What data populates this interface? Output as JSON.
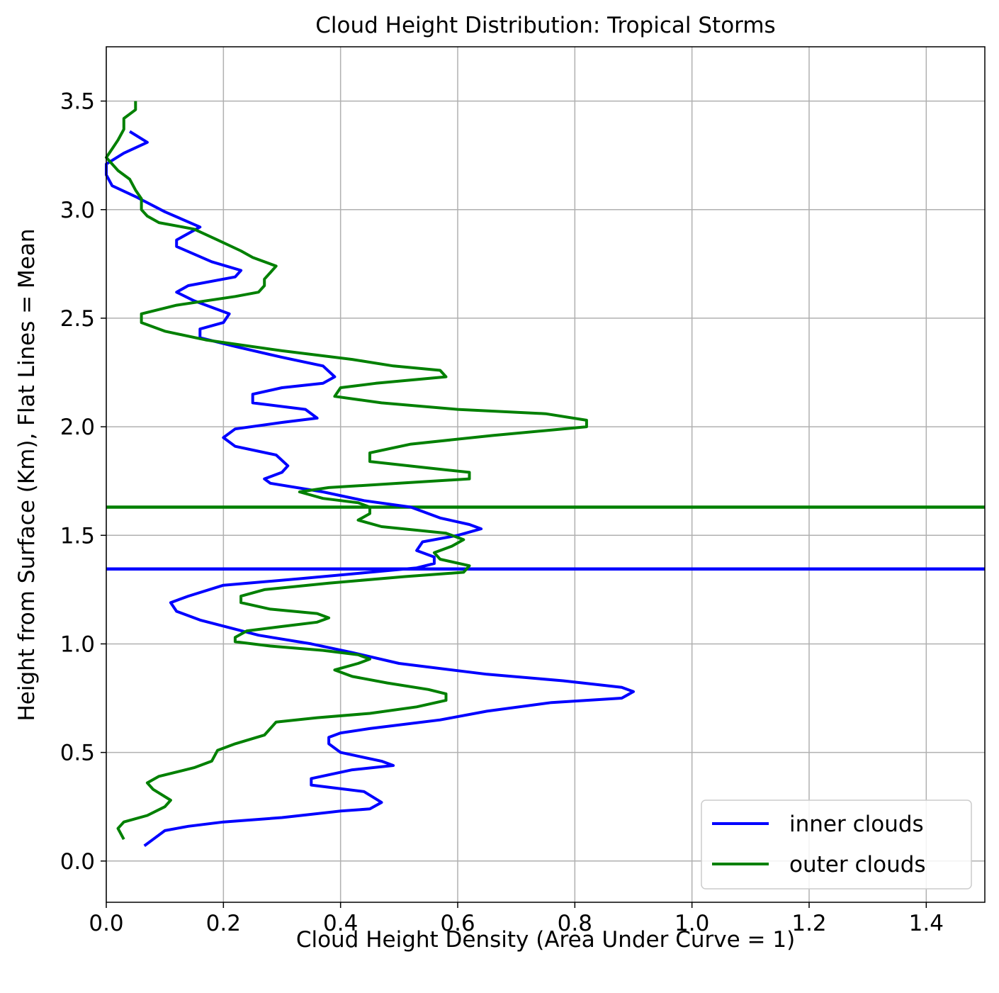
{
  "chart_data": {
    "type": "line",
    "title": "Cloud Height Distribution: Tropical Storms",
    "xlabel": "Cloud Height Density (Area Under Curve = 1)",
    "ylabel": "Height from Surface (Km), Flat Lines = Mean",
    "xlim": [
      0.0,
      1.5
    ],
    "ylim": [
      -0.19,
      3.75
    ],
    "xticks": [
      "0.0",
      "0.2",
      "0.4",
      "0.6",
      "0.8",
      "1.0",
      "1.2",
      "1.4"
    ],
    "yticks": [
      "0.0",
      "0.5",
      "1.0",
      "1.5",
      "2.0",
      "2.5",
      "3.0",
      "3.5"
    ],
    "grid": true,
    "legend": "lower-right",
    "series": [
      {
        "name": "inner clouds",
        "color": "#0000ff",
        "mean": 1.345,
        "points": [
          [
            0.065,
            0.07
          ],
          [
            0.08,
            0.1
          ],
          [
            0.1,
            0.14
          ],
          [
            0.14,
            0.16
          ],
          [
            0.2,
            0.18
          ],
          [
            0.3,
            0.2
          ],
          [
            0.4,
            0.23
          ],
          [
            0.45,
            0.24
          ],
          [
            0.47,
            0.27
          ],
          [
            0.44,
            0.32
          ],
          [
            0.35,
            0.35
          ],
          [
            0.35,
            0.38
          ],
          [
            0.42,
            0.42
          ],
          [
            0.49,
            0.44
          ],
          [
            0.47,
            0.46
          ],
          [
            0.4,
            0.5
          ],
          [
            0.38,
            0.54
          ],
          [
            0.38,
            0.57
          ],
          [
            0.4,
            0.59
          ],
          [
            0.45,
            0.61
          ],
          [
            0.57,
            0.65
          ],
          [
            0.65,
            0.69
          ],
          [
            0.76,
            0.73
          ],
          [
            0.88,
            0.75
          ],
          [
            0.9,
            0.78
          ],
          [
            0.88,
            0.8
          ],
          [
            0.78,
            0.83
          ],
          [
            0.65,
            0.86
          ],
          [
            0.5,
            0.91
          ],
          [
            0.42,
            0.96
          ],
          [
            0.35,
            1.0
          ],
          [
            0.26,
            1.04
          ],
          [
            0.16,
            1.11
          ],
          [
            0.12,
            1.15
          ],
          [
            0.11,
            1.19
          ],
          [
            0.14,
            1.22
          ],
          [
            0.2,
            1.27
          ],
          [
            0.33,
            1.3
          ],
          [
            0.45,
            1.33
          ],
          [
            0.53,
            1.35
          ],
          [
            0.56,
            1.37
          ],
          [
            0.56,
            1.4
          ],
          [
            0.53,
            1.43
          ],
          [
            0.54,
            1.47
          ],
          [
            0.6,
            1.5
          ],
          [
            0.64,
            1.53
          ],
          [
            0.62,
            1.55
          ],
          [
            0.57,
            1.58
          ],
          [
            0.52,
            1.63
          ],
          [
            0.44,
            1.66
          ],
          [
            0.37,
            1.7
          ],
          [
            0.28,
            1.74
          ],
          [
            0.27,
            1.76
          ],
          [
            0.3,
            1.79
          ],
          [
            0.31,
            1.82
          ],
          [
            0.29,
            1.87
          ],
          [
            0.22,
            1.91
          ],
          [
            0.2,
            1.95
          ],
          [
            0.22,
            1.99
          ],
          [
            0.3,
            2.02
          ],
          [
            0.36,
            2.04
          ],
          [
            0.34,
            2.08
          ],
          [
            0.25,
            2.11
          ],
          [
            0.25,
            2.15
          ],
          [
            0.3,
            2.18
          ],
          [
            0.37,
            2.2
          ],
          [
            0.39,
            2.23
          ],
          [
            0.37,
            2.28
          ],
          [
            0.3,
            2.32
          ],
          [
            0.22,
            2.37
          ],
          [
            0.16,
            2.41
          ],
          [
            0.16,
            2.45
          ],
          [
            0.2,
            2.48
          ],
          [
            0.21,
            2.52
          ],
          [
            0.15,
            2.58
          ],
          [
            0.12,
            2.62
          ],
          [
            0.14,
            2.65
          ],
          [
            0.22,
            2.69
          ],
          [
            0.23,
            2.72
          ],
          [
            0.18,
            2.76
          ],
          [
            0.12,
            2.83
          ],
          [
            0.12,
            2.86
          ],
          [
            0.16,
            2.92
          ],
          [
            0.1,
            2.99
          ],
          [
            0.05,
            3.06
          ],
          [
            0.01,
            3.11
          ],
          [
            0.0,
            3.16
          ],
          [
            0.0,
            3.21
          ],
          [
            0.03,
            3.26
          ],
          [
            0.07,
            3.31
          ],
          [
            0.04,
            3.36
          ]
        ]
      },
      {
        "name": "outer clouds",
        "color": "#008000",
        "mean": 1.63,
        "points": [
          [
            0.03,
            0.1
          ],
          [
            0.02,
            0.15
          ],
          [
            0.03,
            0.18
          ],
          [
            0.07,
            0.21
          ],
          [
            0.1,
            0.25
          ],
          [
            0.11,
            0.28
          ],
          [
            0.08,
            0.33
          ],
          [
            0.07,
            0.36
          ],
          [
            0.09,
            0.39
          ],
          [
            0.15,
            0.43
          ],
          [
            0.18,
            0.46
          ],
          [
            0.19,
            0.51
          ],
          [
            0.22,
            0.54
          ],
          [
            0.27,
            0.58
          ],
          [
            0.28,
            0.61
          ],
          [
            0.29,
            0.64
          ],
          [
            0.36,
            0.66
          ],
          [
            0.45,
            0.68
          ],
          [
            0.53,
            0.71
          ],
          [
            0.58,
            0.74
          ],
          [
            0.58,
            0.77
          ],
          [
            0.55,
            0.79
          ],
          [
            0.48,
            0.82
          ],
          [
            0.42,
            0.85
          ],
          [
            0.39,
            0.88
          ],
          [
            0.43,
            0.91
          ],
          [
            0.45,
            0.93
          ],
          [
            0.43,
            0.95
          ],
          [
            0.37,
            0.97
          ],
          [
            0.28,
            0.99
          ],
          [
            0.22,
            1.01
          ],
          [
            0.22,
            1.03
          ],
          [
            0.24,
            1.06
          ],
          [
            0.3,
            1.08
          ],
          [
            0.36,
            1.1
          ],
          [
            0.38,
            1.12
          ],
          [
            0.36,
            1.14
          ],
          [
            0.28,
            1.16
          ],
          [
            0.23,
            1.19
          ],
          [
            0.23,
            1.22
          ],
          [
            0.27,
            1.25
          ],
          [
            0.38,
            1.28
          ],
          [
            0.51,
            1.31
          ],
          [
            0.61,
            1.33
          ],
          [
            0.62,
            1.36
          ],
          [
            0.57,
            1.39
          ],
          [
            0.56,
            1.42
          ],
          [
            0.59,
            1.45
          ],
          [
            0.61,
            1.48
          ],
          [
            0.58,
            1.51
          ],
          [
            0.47,
            1.54
          ],
          [
            0.43,
            1.57
          ],
          [
            0.45,
            1.6
          ],
          [
            0.45,
            1.63
          ],
          [
            0.43,
            1.65
          ],
          [
            0.37,
            1.67
          ],
          [
            0.33,
            1.7
          ],
          [
            0.38,
            1.72
          ],
          [
            0.5,
            1.74
          ],
          [
            0.62,
            1.76
          ],
          [
            0.62,
            1.79
          ],
          [
            0.55,
            1.81
          ],
          [
            0.45,
            1.84
          ],
          [
            0.45,
            1.88
          ],
          [
            0.52,
            1.92
          ],
          [
            0.66,
            1.96
          ],
          [
            0.82,
            2.0
          ],
          [
            0.82,
            2.03
          ],
          [
            0.75,
            2.06
          ],
          [
            0.6,
            2.08
          ],
          [
            0.47,
            2.11
          ],
          [
            0.39,
            2.14
          ],
          [
            0.4,
            2.18
          ],
          [
            0.46,
            2.2
          ],
          [
            0.58,
            2.23
          ],
          [
            0.57,
            2.26
          ],
          [
            0.49,
            2.28
          ],
          [
            0.42,
            2.31
          ],
          [
            0.3,
            2.35
          ],
          [
            0.17,
            2.4
          ],
          [
            0.1,
            2.44
          ],
          [
            0.06,
            2.48
          ],
          [
            0.06,
            2.52
          ],
          [
            0.12,
            2.56
          ],
          [
            0.22,
            2.6
          ],
          [
            0.26,
            2.62
          ],
          [
            0.27,
            2.65
          ],
          [
            0.27,
            2.68
          ],
          [
            0.28,
            2.71
          ],
          [
            0.29,
            2.74
          ],
          [
            0.25,
            2.78
          ],
          [
            0.23,
            2.81
          ],
          [
            0.19,
            2.86
          ],
          [
            0.15,
            2.91
          ],
          [
            0.09,
            2.94
          ],
          [
            0.07,
            2.97
          ],
          [
            0.06,
            3.0
          ],
          [
            0.06,
            3.05
          ],
          [
            0.05,
            3.09
          ],
          [
            0.04,
            3.14
          ],
          [
            0.02,
            3.18
          ],
          [
            0.01,
            3.21
          ],
          [
            0.0,
            3.24
          ],
          [
            0.01,
            3.28
          ],
          [
            0.02,
            3.32
          ],
          [
            0.03,
            3.37
          ],
          [
            0.03,
            3.42
          ],
          [
            0.05,
            3.46
          ],
          [
            0.05,
            3.5
          ]
        ]
      }
    ]
  }
}
